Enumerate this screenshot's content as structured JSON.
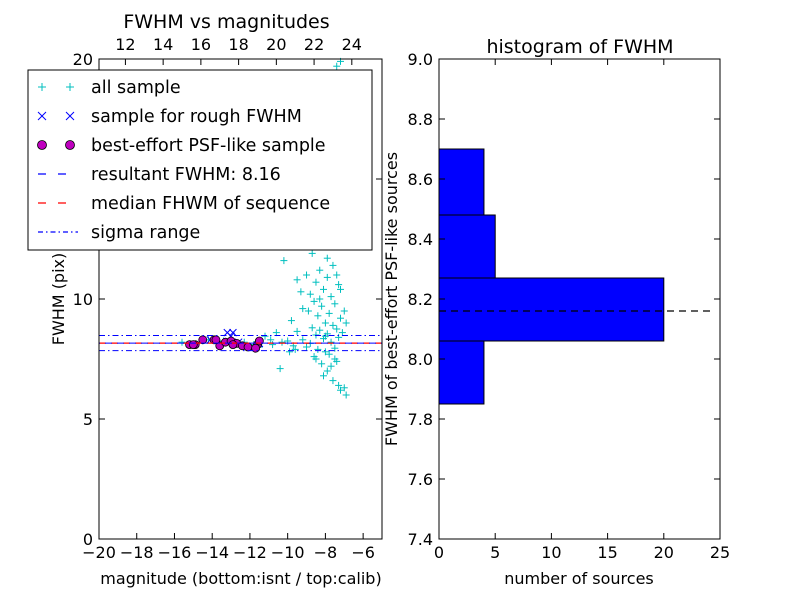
{
  "chart_data": [
    {
      "type": "scatter",
      "title": "FWHM vs magnitudes",
      "xlabel": "magnitude (bottom:isnt / top:calib)",
      "ylabel": "FWHM (pix)",
      "xlim": [
        -20,
        -5
      ],
      "ylim": [
        0,
        20
      ],
      "x_ticks": [
        -20,
        -18,
        -16,
        -14,
        -12,
        -10,
        -8,
        -6
      ],
      "x_tick_labels": [
        "−20",
        "−18",
        "−16",
        "−14",
        "−12",
        "−10",
        "−8",
        "−6"
      ],
      "y_ticks": [
        0,
        5,
        10,
        15,
        20
      ],
      "y_tick_labels": [
        "0",
        "5",
        "10",
        "15",
        "20"
      ],
      "top_axis": {
        "tick_labels": [
          "12",
          "14",
          "16",
          "18",
          "20",
          "22",
          "24"
        ],
        "tick_positions": [
          -18.6,
          -16.6,
          -14.6,
          -12.6,
          -10.6,
          -8.6,
          -6.6
        ]
      },
      "grid": false,
      "legend_placement": "upper-left",
      "legend": [
        {
          "label": "all sample",
          "marker": "+",
          "color": "#00bfbf"
        },
        {
          "label": "sample for rough FWHM",
          "marker": "x",
          "color": "#0000ff"
        },
        {
          "label": "best-effort PSF-like sample",
          "marker": "o",
          "color": "#bf00bf"
        },
        {
          "label": "resultant FWHM: 8.16",
          "line": "dashed",
          "color": "#0000ff"
        },
        {
          "label": "median FHWM of sequence",
          "line": "dashed",
          "color": "#ff0000"
        },
        {
          "label": "sigma range",
          "line": "dashdot",
          "color": "#0000ff"
        }
      ],
      "lines": {
        "resultant_fwhm": 8.16,
        "median_fwhm": 8.16,
        "sigma_low": 7.85,
        "sigma_high": 8.48
      },
      "series": [
        {
          "name": "all sample",
          "marker": "+",
          "color": "#00bfbf",
          "points": [
            [
              -7.2,
              19.9
            ],
            [
              -7.4,
              19.7
            ],
            [
              -7.6,
              19.4
            ],
            [
              -8.3,
              17.8
            ],
            [
              -8.8,
              16.9
            ],
            [
              -7.9,
              17.2
            ],
            [
              -8.5,
              18.6
            ],
            [
              -9.1,
              16.2
            ],
            [
              -8.1,
              15.9
            ],
            [
              -7.3,
              16.4
            ],
            [
              -7.8,
              15.1
            ],
            [
              -8.6,
              14.8
            ],
            [
              -9.4,
              14.2
            ],
            [
              -8.2,
              13.9
            ],
            [
              -7.5,
              14.6
            ],
            [
              -8.9,
              13.5
            ],
            [
              -7.7,
              13.1
            ],
            [
              -8.4,
              12.7
            ],
            [
              -9.6,
              12.9
            ],
            [
              -7.4,
              12.4
            ],
            [
              -8.0,
              12.2
            ],
            [
              -8.7,
              11.9
            ],
            [
              -10.2,
              11.6
            ],
            [
              -7.6,
              11.4
            ],
            [
              -8.3,
              11.2
            ],
            [
              -9.0,
              11.0
            ],
            [
              -7.9,
              10.9
            ],
            [
              -8.5,
              10.7
            ],
            [
              -7.3,
              10.6
            ],
            [
              -8.1,
              10.4
            ],
            [
              -9.3,
              10.3
            ],
            [
              -7.7,
              10.1
            ],
            [
              -8.6,
              9.9
            ],
            [
              -7.5,
              9.8
            ],
            [
              -8.2,
              9.7
            ],
            [
              -8.9,
              9.5
            ],
            [
              -7.8,
              9.4
            ],
            [
              -8.4,
              9.3
            ],
            [
              -7.2,
              9.2
            ],
            [
              -9.8,
              9.1
            ],
            [
              -8.0,
              9.0
            ],
            [
              -7.6,
              8.9
            ],
            [
              -8.7,
              8.8
            ],
            [
              -7.4,
              8.75
            ],
            [
              -8.3,
              8.7
            ],
            [
              -9.5,
              8.65
            ],
            [
              -10.6,
              8.6
            ],
            [
              -7.9,
              8.55
            ],
            [
              -8.5,
              8.5
            ],
            [
              -11.2,
              8.45
            ],
            [
              -7.3,
              8.4
            ],
            [
              -8.1,
              8.35
            ],
            [
              -9.2,
              8.3
            ],
            [
              -10.0,
              8.25
            ],
            [
              -7.7,
              8.2
            ],
            [
              -8.8,
              8.15
            ],
            [
              -10.8,
              8.1
            ],
            [
              -9.7,
              8.05
            ],
            [
              -11.5,
              8.0
            ],
            [
              -7.5,
              7.95
            ],
            [
              -8.4,
              7.9
            ],
            [
              -9.9,
              7.8
            ],
            [
              -7.8,
              7.7
            ],
            [
              -8.6,
              7.6
            ],
            [
              -7.4,
              7.4
            ],
            [
              -8.2,
              7.3
            ],
            [
              -10.4,
              7.1
            ],
            [
              -7.9,
              7.0
            ],
            [
              -8.1,
              6.8
            ],
            [
              -7.6,
              6.6
            ],
            [
              -7.3,
              6.4
            ],
            [
              -7.0,
              6.3
            ],
            [
              -7.2,
              6.2
            ],
            [
              -6.9,
              6.0
            ],
            [
              -7.5,
              7.5
            ],
            [
              -8.0,
              7.8
            ],
            [
              -9.0,
              8.0
            ],
            [
              -9.6,
              7.9
            ],
            [
              -10.3,
              8.2
            ],
            [
              -10.9,
              8.3
            ],
            [
              -11.8,
              8.1
            ],
            [
              -12.3,
              8.2
            ],
            [
              -12.8,
              8.15
            ],
            [
              -13.4,
              8.25
            ],
            [
              -14.2,
              8.3
            ],
            [
              -15.0,
              8.1
            ],
            [
              -15.6,
              8.2
            ],
            [
              -8.8,
              10.2
            ],
            [
              -8.3,
              10.0
            ],
            [
              -7.9,
              11.7
            ],
            [
              -8.6,
              12.5
            ],
            [
              -7.5,
              13.5
            ],
            [
              -8.1,
              14.3
            ],
            [
              -7.8,
              16.6
            ],
            [
              -8.4,
              15.5
            ],
            [
              -7.4,
              11.0
            ],
            [
              -7.1,
              8.6
            ],
            [
              -6.9,
              9.0
            ],
            [
              -7.0,
              9.5
            ],
            [
              -7.2,
              10.4
            ],
            [
              -9.2,
              9.6
            ],
            [
              -9.5,
              10.8
            ],
            [
              -8.0,
              8.45
            ],
            [
              -7.7,
              7.2
            ],
            [
              -8.5,
              7.5
            ]
          ]
        },
        {
          "name": "sample for rough FWHM",
          "marker": "x",
          "color": "#0000ff",
          "points": [
            [
              -13.2,
              8.6
            ],
            [
              -12.9,
              8.6
            ],
            [
              -13.0,
              8.45
            ],
            [
              -12.6,
              8.2
            ],
            [
              -11.5,
              8.15
            ],
            [
              -14.1,
              8.3
            ]
          ]
        },
        {
          "name": "best-effort PSF-like sample",
          "marker": "o",
          "color": "#bf00bf",
          "points": [
            [
              -15.2,
              8.1
            ],
            [
              -14.9,
              8.1
            ],
            [
              -14.5,
              8.3
            ],
            [
              -13.9,
              8.3
            ],
            [
              -13.6,
              8.05
            ],
            [
              -13.3,
              8.2
            ],
            [
              -13.0,
              8.25
            ],
            [
              -12.7,
              8.15
            ],
            [
              -12.4,
              8.05
            ],
            [
              -12.1,
              8.0
            ],
            [
              -11.6,
              8.1
            ],
            [
              -11.5,
              8.25
            ],
            [
              -11.7,
              7.95
            ],
            [
              -13.8,
              8.3
            ],
            [
              -15.0,
              8.1
            ],
            [
              -12.9,
              8.1
            ]
          ]
        }
      ]
    },
    {
      "type": "bar",
      "orientation": "horizontal",
      "title": "histogram of FWHM",
      "xlabel": "number of sources",
      "ylabel": "FWHM of best-effort PSF-like sources",
      "xlim": [
        0,
        25
      ],
      "ylim": [
        7.4,
        9.0
      ],
      "x_ticks": [
        0,
        5,
        10,
        15,
        20,
        25
      ],
      "x_tick_labels": [
        "0",
        "5",
        "10",
        "15",
        "20",
        "25"
      ],
      "y_ticks": [
        7.4,
        7.6,
        7.8,
        8.0,
        8.2,
        8.4,
        8.6,
        8.8,
        9.0
      ],
      "y_tick_labels": [
        "7.4",
        "7.6",
        "7.8",
        "8.0",
        "8.2",
        "8.4",
        "8.6",
        "8.8",
        "9.0"
      ],
      "bar_color": "#0000ff",
      "bins": [
        {
          "low": 7.85,
          "high": 8.06,
          "count": 4
        },
        {
          "low": 8.06,
          "high": 8.27,
          "count": 20
        },
        {
          "low": 8.27,
          "high": 8.48,
          "count": 5
        },
        {
          "low": 8.48,
          "high": 8.7,
          "count": 4
        }
      ],
      "reference_line": {
        "value": 8.16,
        "style": "dashed",
        "color": "#000000"
      }
    }
  ]
}
